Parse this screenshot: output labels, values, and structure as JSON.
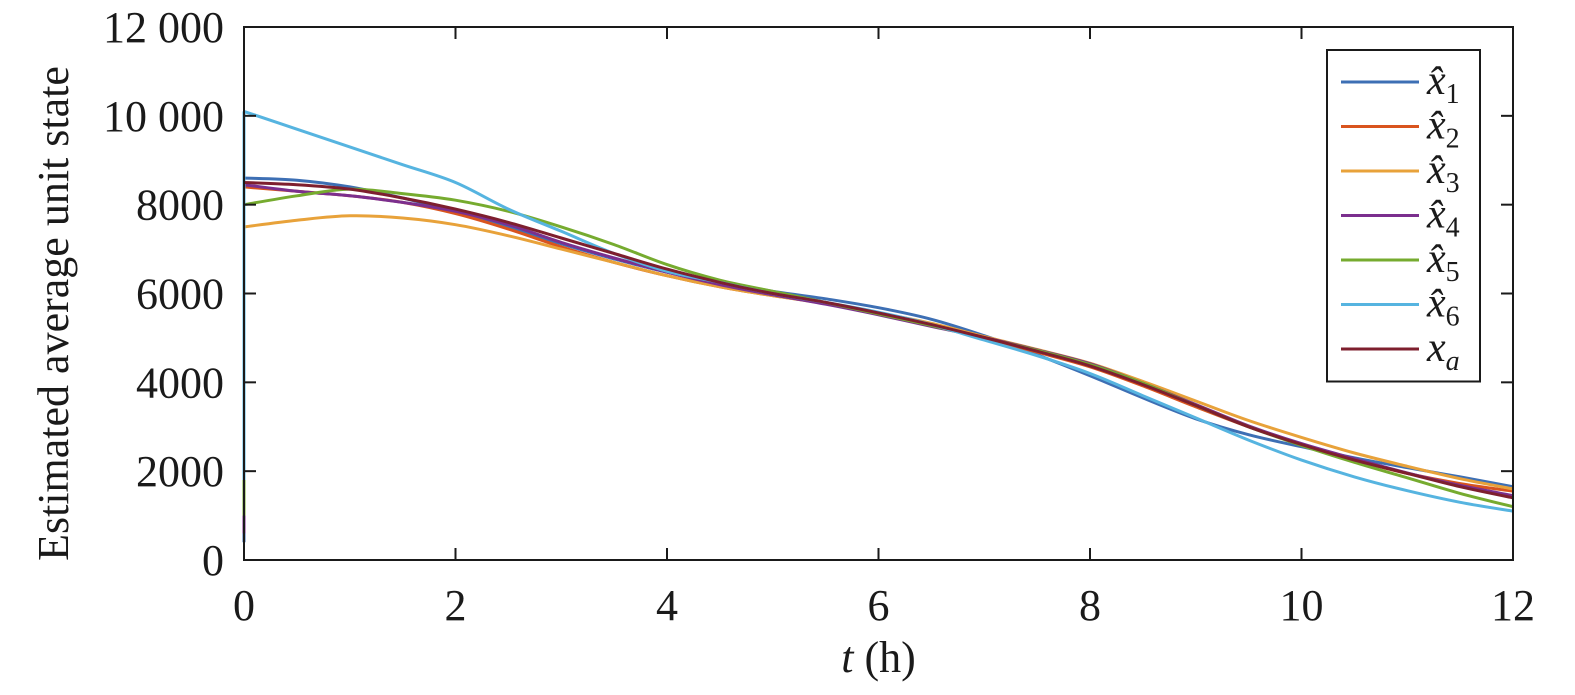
{
  "chart_data": {
    "type": "line",
    "xlabel": {
      "var": "t",
      "unit": " (h)"
    },
    "ylabel": "Estimated average unit state",
    "xlim": [
      0,
      12
    ],
    "ylim": [
      0,
      12000
    ],
    "xticks": [
      0,
      2,
      4,
      6,
      8,
      10,
      12
    ],
    "xtick_labels": [
      "0",
      "2",
      "4",
      "6",
      "8",
      "10",
      "12"
    ],
    "yticks": [
      0,
      2000,
      4000,
      6000,
      8000,
      10000,
      12000
    ],
    "ytick_labels": [
      "0",
      "2000",
      "4000",
      "6000",
      "8000",
      "10 000",
      "12 000"
    ],
    "grid": false,
    "legend_position": "top-right",
    "x": [
      0,
      0.5,
      1,
      1.5,
      2,
      2.5,
      3,
      3.5,
      4,
      4.5,
      5,
      5.5,
      6,
      6.5,
      7,
      7.5,
      8,
      8.5,
      9,
      9.5,
      10,
      10.5,
      11,
      11.5,
      12
    ],
    "series": [
      {
        "name": "x̂",
        "sub": "1",
        "color": "#3d6fb4",
        "initial": 400,
        "values": [
          8600,
          8550,
          8400,
          8150,
          7850,
          7500,
          7120,
          6780,
          6480,
          6250,
          6050,
          5880,
          5680,
          5420,
          5050,
          4620,
          4150,
          3650,
          3180,
          2820,
          2550,
          2300,
          2080,
          1870,
          1650
        ]
      },
      {
        "name": "x̂",
        "sub": "2",
        "color": "#d9541e",
        "initial": 1300,
        "values": [
          8400,
          8300,
          8200,
          8050,
          7800,
          7450,
          7050,
          6700,
          6400,
          6150,
          5950,
          5780,
          5560,
          5320,
          5000,
          4680,
          4350,
          3920,
          3450,
          3000,
          2600,
          2250,
          1950,
          1720,
          1550
        ]
      },
      {
        "name": "x̂",
        "sub": "3",
        "color": "#e8a23a",
        "initial": 800,
        "values": [
          7500,
          7650,
          7750,
          7700,
          7550,
          7300,
          7000,
          6700,
          6400,
          6150,
          5950,
          5770,
          5560,
          5330,
          5030,
          4740,
          4430,
          4020,
          3580,
          3140,
          2760,
          2410,
          2110,
          1830,
          1600
        ]
      },
      {
        "name": "x̂",
        "sub": "4",
        "color": "#7b2f8e",
        "initial": 600,
        "values": [
          8450,
          8300,
          8200,
          8050,
          7850,
          7550,
          7150,
          6800,
          6480,
          6200,
          5970,
          5760,
          5520,
          5260,
          5010,
          4730,
          4420,
          3980,
          3500,
          3020,
          2620,
          2280,
          1960,
          1680,
          1450
        ]
      },
      {
        "name": "x̂",
        "sub": "5",
        "color": "#76ab2f",
        "initial": 1000,
        "values": [
          8000,
          8200,
          8350,
          8250,
          8100,
          7850,
          7500,
          7100,
          6650,
          6300,
          6050,
          5800,
          5540,
          5280,
          5000,
          4720,
          4400,
          3980,
          3480,
          3000,
          2580,
          2200,
          1850,
          1500,
          1200
        ]
      },
      {
        "name": "x̂",
        "sub": "6",
        "color": "#56b4e0",
        "initial": 1800,
        "values": [
          10100,
          9700,
          9300,
          8900,
          8500,
          7900,
          7400,
          6900,
          6500,
          6250,
          6000,
          5800,
          5580,
          5300,
          4950,
          4600,
          4200,
          3700,
          3200,
          2700,
          2250,
          1870,
          1560,
          1300,
          1100
        ]
      },
      {
        "name": "x",
        "sub": "a",
        "color": "#7e1f2e",
        "initial": null,
        "values": [
          8500,
          8450,
          8350,
          8150,
          7900,
          7600,
          7250,
          6900,
          6550,
          6250,
          6000,
          5800,
          5560,
          5300,
          5010,
          4700,
          4370,
          3950,
          3480,
          3000,
          2600,
          2250,
          1950,
          1650,
          1400
        ]
      }
    ]
  }
}
